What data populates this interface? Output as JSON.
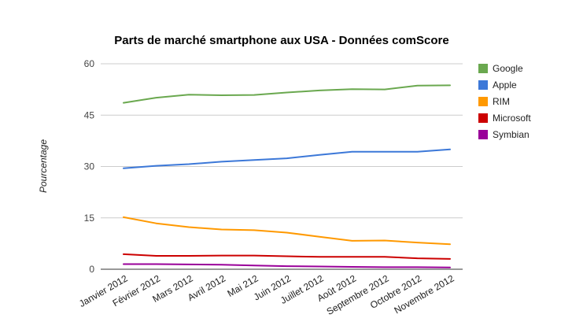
{
  "chart_data": {
    "type": "line",
    "title": "Parts de marché smartphone aux USA - Données comScore",
    "xlabel": "",
    "ylabel": "Pourcentage",
    "ylim": [
      0,
      60
    ],
    "yticks": [
      0,
      15,
      30,
      45,
      60
    ],
    "grid": true,
    "legend_position": "right",
    "categories": [
      "Janvier 2012",
      "Février 2012",
      "Mars 2012",
      "Avril 2012",
      "Mai 212",
      "Juin 2012",
      "Juillet 2012",
      "Août 2012",
      "Septembre 2012",
      "Octobre 2012",
      "Novembre 2012"
    ],
    "series": [
      {
        "name": "Google",
        "color": "#6aa84f",
        "values": [
          48.6,
          50.1,
          51.0,
          50.8,
          50.9,
          51.6,
          52.2,
          52.6,
          52.5,
          53.6,
          53.7
        ]
      },
      {
        "name": "Apple",
        "color": "#3c78d8",
        "values": [
          29.5,
          30.2,
          30.7,
          31.4,
          31.9,
          32.4,
          33.4,
          34.3,
          34.3,
          34.3,
          35.0
        ]
      },
      {
        "name": "RIM",
        "color": "#ff9900",
        "values": [
          15.2,
          13.4,
          12.3,
          11.6,
          11.4,
          10.7,
          9.5,
          8.3,
          8.4,
          7.8,
          7.3
        ]
      },
      {
        "name": "Microsoft",
        "color": "#cc0000",
        "values": [
          4.4,
          3.9,
          3.9,
          4.0,
          4.0,
          3.8,
          3.6,
          3.6,
          3.6,
          3.2,
          3.0
        ]
      },
      {
        "name": "Symbian",
        "color": "#990099",
        "values": [
          1.5,
          1.5,
          1.4,
          1.3,
          1.1,
          0.9,
          0.8,
          0.7,
          0.6,
          0.6,
          0.5
        ]
      }
    ]
  }
}
